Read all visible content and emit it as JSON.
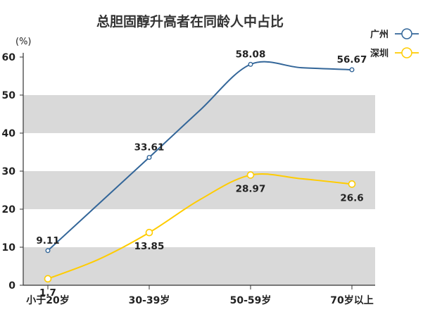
{
  "chart_data": {
    "type": "line",
    "title": "总胆固醇升高者在同龄人中占比",
    "ylabel": "(%)",
    "xlabel": "",
    "ylim": [
      0,
      60
    ],
    "yticks": [
      0,
      10,
      20,
      30,
      40,
      50,
      60
    ],
    "grid": "alternating horizontal bands",
    "legend_position": "top-right",
    "categories": [
      "小于20岁",
      "30-39岁",
      "50-59岁",
      "70岁以上"
    ],
    "series": [
      {
        "name": "广州",
        "color": "#336699",
        "points": [
          {
            "x": 0,
            "y": 9.11,
            "label": "9.11",
            "label_pos": "above"
          },
          {
            "x": 1,
            "y": 33.61,
            "label": "33.61",
            "label_pos": "above"
          },
          {
            "x": 2,
            "y": 58.08,
            "label": "58.08",
            "label_pos": "above"
          },
          {
            "x": 3,
            "y": 56.67,
            "label": "56.67",
            "label_pos": "above"
          }
        ],
        "smooth_via": [
          {
            "x": 1.5,
            "y": 46.0
          },
          {
            "x": 2.5,
            "y": 57.2
          }
        ]
      },
      {
        "name": "深圳",
        "color": "#ffcc00",
        "points": [
          {
            "x": 0,
            "y": 1.7,
            "label": "1.7",
            "label_pos": "below"
          },
          {
            "x": 1,
            "y": 13.85,
            "label": "13.85",
            "label_pos": "below"
          },
          {
            "x": 2,
            "y": 28.97,
            "label": "28.97",
            "label_pos": "below"
          },
          {
            "x": 3,
            "y": 26.6,
            "label": "26.6",
            "label_pos": "below"
          }
        ],
        "smooth_via": [
          {
            "x": 0.5,
            "y": 6.8
          },
          {
            "x": 1.5,
            "y": 22.5
          },
          {
            "x": 2.5,
            "y": 28.0
          }
        ]
      }
    ]
  }
}
